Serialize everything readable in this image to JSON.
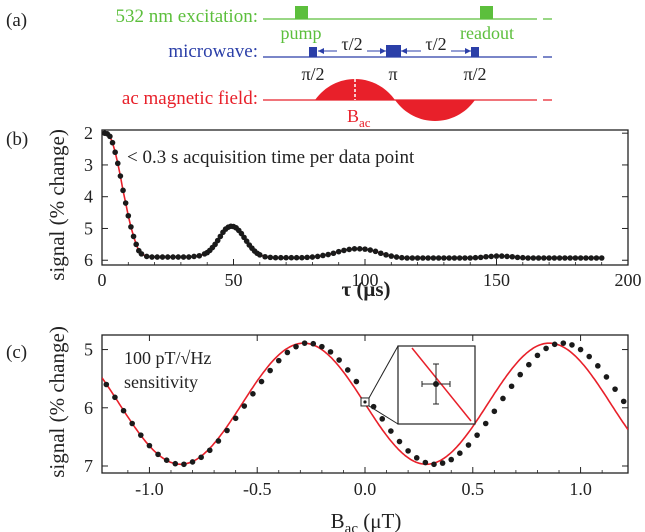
{
  "panel_a": {
    "label": "(a)",
    "excitation": {
      "label": "532 nm excitation:",
      "pulses": [
        "pump",
        "readout"
      ],
      "color": "#5cbf3c"
    },
    "microwave": {
      "label": "microwave:",
      "pulses": [
        "π/2",
        "π",
        "π/2"
      ],
      "intervals": [
        "τ/2",
        "τ/2"
      ],
      "color": "#2b3fa8"
    },
    "ac_field": {
      "label": "ac magnetic field:",
      "amplitude_label": "B",
      "amplitude_sub": "ac",
      "color": "#e8202a"
    }
  },
  "chart_data": [
    {
      "type": "scatter",
      "panel_label": "(b)",
      "annotation": "< 0.3 s acquisition time per data point",
      "xlabel": "τ",
      "xunit": "(μs)",
      "ylabel": "signal (% change)",
      "xlim": [
        0,
        200
      ],
      "ylim": [
        6.15,
        1.9
      ],
      "y_inverted": true,
      "xticks": [
        0,
        50,
        100,
        150,
        200
      ],
      "yticks": [
        2,
        3,
        4,
        5,
        6
      ],
      "series": [
        {
          "marker_color": "#1a1a1a",
          "x": [
            1,
            2,
            3,
            4,
            5,
            6,
            7,
            8,
            9,
            10,
            11,
            12,
            13,
            14,
            15,
            17,
            19,
            21,
            23,
            25,
            27,
            29,
            31,
            33,
            35,
            37,
            39,
            40,
            41,
            42,
            43,
            44,
            45,
            46,
            47,
            48,
            49,
            50,
            51,
            52,
            53,
            54,
            55,
            56,
            57,
            58,
            59,
            60,
            62,
            64,
            66,
            68,
            70,
            72,
            74,
            76,
            78,
            80,
            82,
            84,
            86,
            88,
            90,
            92,
            94,
            96,
            98,
            100,
            102,
            104,
            106,
            108,
            110,
            112,
            114,
            116,
            118,
            120,
            122,
            124,
            126,
            128,
            130,
            132,
            134,
            136,
            138,
            140,
            142,
            144,
            146,
            148,
            150,
            152,
            154,
            156,
            158,
            160,
            162,
            164,
            166,
            168,
            170,
            172,
            174,
            176,
            178,
            180,
            182,
            184,
            186,
            188,
            190
          ],
          "y": [
            2.0,
            2.02,
            2.1,
            2.3,
            2.6,
            2.95,
            3.35,
            3.8,
            4.2,
            4.6,
            4.95,
            5.25,
            5.5,
            5.7,
            5.8,
            5.88,
            5.9,
            5.9,
            5.9,
            5.9,
            5.9,
            5.9,
            5.9,
            5.9,
            5.88,
            5.86,
            5.8,
            5.76,
            5.69,
            5.6,
            5.5,
            5.38,
            5.25,
            5.12,
            5.02,
            4.96,
            4.93,
            4.94,
            4.98,
            5.06,
            5.16,
            5.28,
            5.4,
            5.52,
            5.62,
            5.71,
            5.78,
            5.83,
            5.89,
            5.91,
            5.92,
            5.92,
            5.92,
            5.92,
            5.92,
            5.92,
            5.91,
            5.9,
            5.88,
            5.85,
            5.82,
            5.78,
            5.73,
            5.69,
            5.66,
            5.64,
            5.64,
            5.65,
            5.68,
            5.72,
            5.78,
            5.83,
            5.87,
            5.9,
            5.92,
            5.93,
            5.93,
            5.93,
            5.93,
            5.93,
            5.93,
            5.93,
            5.93,
            5.93,
            5.93,
            5.93,
            5.93,
            5.93,
            5.92,
            5.91,
            5.89,
            5.88,
            5.87,
            5.87,
            5.88,
            5.89,
            5.91,
            5.92,
            5.93,
            5.93,
            5.93,
            5.93,
            5.93,
            5.93,
            5.93,
            5.93,
            5.93,
            5.93,
            5.93,
            5.93,
            5.93,
            5.93,
            5.93
          ]
        },
        {
          "fit_color": "#e8202a"
        }
      ]
    },
    {
      "type": "scatter",
      "panel_label": "(c)",
      "annotation_lines": [
        "100 pT/√Hz",
        "sensitivity"
      ],
      "xlabel": "B",
      "xlabel_sub": "ac",
      "xunit": "(μT)",
      "ylabel": "signal (% change)",
      "xlim": [
        -1.22,
        1.22
      ],
      "ylim": [
        4.75,
        7.12
      ],
      "y_inverted": true,
      "xticks": [
        -1.0,
        -0.5,
        0.0,
        0.5,
        1.0
      ],
      "xtick_labels": [
        "-1.0",
        "-0.5",
        "0.0",
        "0.5",
        "1.0"
      ],
      "yticks": [
        5,
        6,
        7
      ],
      "fit": {
        "mean": 5.93,
        "amplitude": 1.04,
        "period": 1.14,
        "phase_x": -0.285,
        "color": "#e8202a"
      },
      "series": [
        {
          "marker_color": "#1a1a1a",
          "x": [
            -1.2,
            -1.16,
            -1.12,
            -1.08,
            -1.04,
            -1.0,
            -0.96,
            -0.92,
            -0.88,
            -0.84,
            -0.8,
            -0.76,
            -0.72,
            -0.68,
            -0.64,
            -0.6,
            -0.56,
            -0.52,
            -0.48,
            -0.44,
            -0.4,
            -0.36,
            -0.32,
            -0.28,
            -0.24,
            -0.2,
            -0.16,
            -0.12,
            -0.08,
            -0.04,
            0.0,
            0.04,
            0.08,
            0.12,
            0.16,
            0.2,
            0.24,
            0.28,
            0.32,
            0.36,
            0.4,
            0.44,
            0.48,
            0.52,
            0.56,
            0.6,
            0.64,
            0.68,
            0.72,
            0.76,
            0.8,
            0.84,
            0.88,
            0.92,
            0.96,
            1.0,
            1.04,
            1.08,
            1.12,
            1.16,
            1.2
          ],
          "y": [
            5.6,
            5.82,
            6.05,
            6.27,
            6.47,
            6.65,
            6.8,
            6.9,
            6.96,
            6.97,
            6.93,
            6.85,
            6.73,
            6.57,
            6.39,
            6.18,
            5.97,
            5.76,
            5.55,
            5.36,
            5.19,
            5.05,
            4.95,
            4.89,
            4.9,
            4.95,
            5.04,
            5.18,
            5.35,
            5.55,
            5.9,
            5.98,
            6.19,
            6.4,
            6.58,
            6.74,
            6.86,
            6.94,
            6.97,
            6.95,
            6.89,
            6.78,
            6.64,
            6.47,
            6.27,
            6.06,
            5.84,
            5.63,
            5.43,
            5.26,
            5.1,
            4.98,
            4.91,
            4.89,
            4.92,
            5.0,
            5.12,
            5.28,
            5.47,
            5.68,
            5.89
          ]
        }
      ],
      "inset": {
        "center": [
          0.0,
          5.9
        ]
      }
    }
  ]
}
